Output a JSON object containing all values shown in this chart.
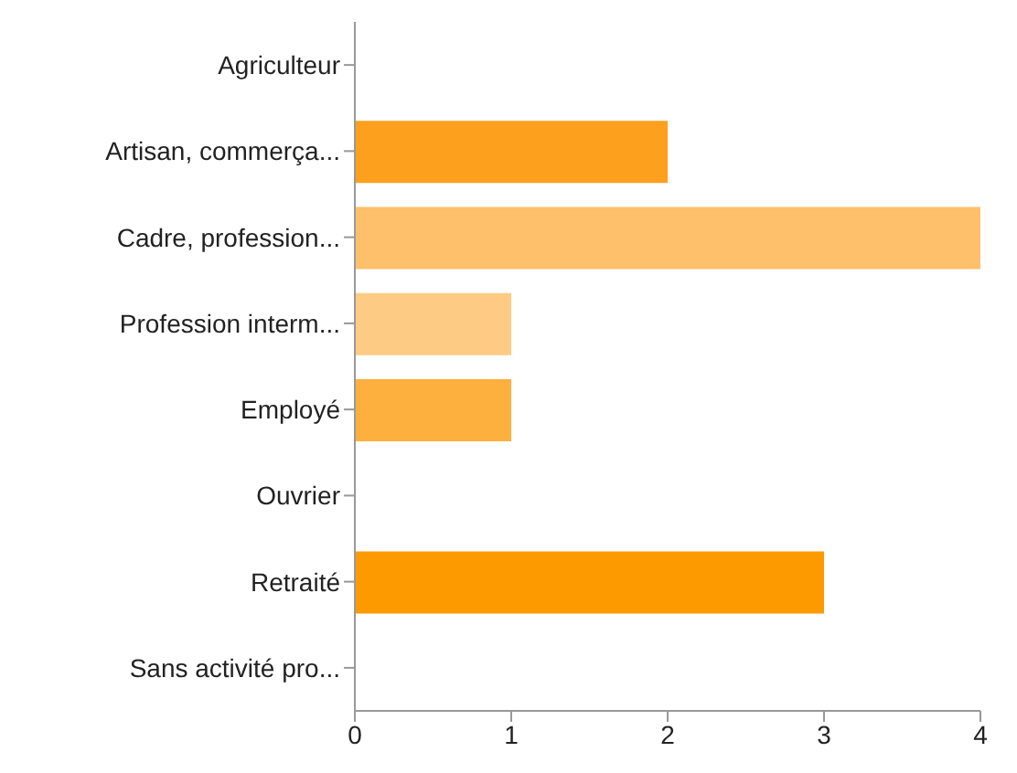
{
  "chart_data": {
    "type": "bar",
    "orientation": "horizontal",
    "categories": [
      "Agriculteur",
      "Artisan, commerça...",
      "Cadre, profession...",
      "Profession interm...",
      "Employé",
      "Ouvrier",
      "Retraité",
      "Sans activité pro..."
    ],
    "values": [
      0,
      2,
      4,
      1,
      1,
      0,
      3,
      0
    ],
    "colors": [
      "#fd9a00",
      "#fda01e",
      "#fec06a",
      "#fecb84",
      "#fdb03e",
      "#fd9a00",
      "#fd9a00",
      "#fd9a00"
    ],
    "xlim": [
      0,
      4
    ],
    "xticks": [
      0,
      1,
      2,
      3,
      4
    ]
  }
}
